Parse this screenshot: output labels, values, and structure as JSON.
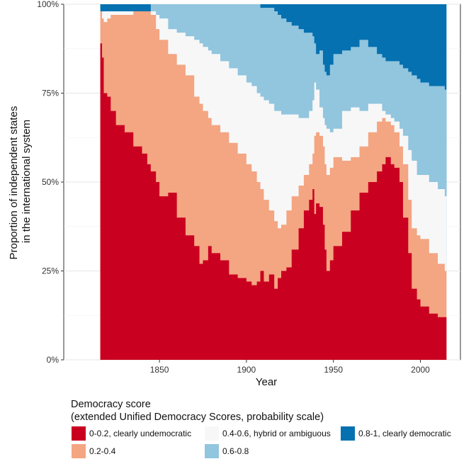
{
  "chart_data": {
    "type": "area",
    "xlabel": "Year",
    "ylabel_lines": [
      "Proportion of independent states",
      "in the international system"
    ],
    "xlim": [
      1795,
      2023
    ],
    "ylim": [
      0,
      1
    ],
    "x_ticks": [
      1850,
      1900,
      1950,
      2000
    ],
    "y_ticks": [
      0,
      0.25,
      0.5,
      0.75,
      1
    ],
    "y_tick_labels": [
      "0%",
      "25%",
      "50%",
      "75%",
      "100%"
    ],
    "x_tick_labels": [
      "1850",
      "1900",
      "1950",
      "2000"
    ],
    "grid": true,
    "legend_position": "bottom",
    "legend_title_lines": [
      "Democracy score",
      "(extended Unified Democracy Scores, probability scale)"
    ],
    "series": [
      {
        "name": "0-2, clearly undemocratic",
        "display_name": "0-0.2, clearly undemocratic",
        "color": "#ca0020"
      },
      {
        "name": "0.2-0.4",
        "color": "#f4a582"
      },
      {
        "name": "0.4-0.6, hybrid or ambiguous",
        "color": "#f7f7f7"
      },
      {
        "name": "0.6-0.8",
        "color": "#92c5de"
      },
      {
        "name": "0.8-1, clearly democratic",
        "color": "#0571b0"
      }
    ],
    "cumulative_upper_bounds": {
      "x": [
        1816,
        1817,
        1818,
        1820,
        1822,
        1825,
        1830,
        1835,
        1840,
        1843,
        1845,
        1848,
        1850,
        1855,
        1860,
        1865,
        1870,
        1873,
        1875,
        1878,
        1880,
        1885,
        1890,
        1895,
        1900,
        1903,
        1906,
        1908,
        1910,
        1913,
        1916,
        1918,
        1920,
        1923,
        1926,
        1930,
        1933,
        1936,
        1938,
        1939,
        1940,
        1942,
        1944,
        1945,
        1946,
        1948,
        1950,
        1955,
        1960,
        1965,
        1970,
        1975,
        1978,
        1980,
        1983,
        1985,
        1988,
        1990,
        1993,
        1995,
        1998,
        2000,
        2005,
        2010,
        2014
      ],
      "undemocratic": [
        0.89,
        0.85,
        0.75,
        0.74,
        0.7,
        0.66,
        0.64,
        0.6,
        0.58,
        0.55,
        0.53,
        0.5,
        0.46,
        0.47,
        0.4,
        0.35,
        0.32,
        0.27,
        0.28,
        0.32,
        0.3,
        0.28,
        0.24,
        0.23,
        0.22,
        0.21,
        0.22,
        0.25,
        0.22,
        0.24,
        0.2,
        0.23,
        0.25,
        0.26,
        0.31,
        0.37,
        0.42,
        0.45,
        0.48,
        0.41,
        0.44,
        0.43,
        0.38,
        0.31,
        0.25,
        0.28,
        0.32,
        0.36,
        0.42,
        0.47,
        0.5,
        0.53,
        0.55,
        0.57,
        0.55,
        0.54,
        0.5,
        0.4,
        0.3,
        0.2,
        0.17,
        0.15,
        0.13,
        0.12,
        0.12
      ],
      "cum_0_4": [
        0.98,
        0.96,
        0.95,
        0.96,
        0.97,
        0.97,
        0.97,
        0.98,
        0.98,
        0.98,
        0.97,
        0.93,
        0.9,
        0.86,
        0.83,
        0.8,
        0.74,
        0.72,
        0.7,
        0.68,
        0.66,
        0.64,
        0.61,
        0.58,
        0.55,
        0.53,
        0.5,
        0.48,
        0.45,
        0.42,
        0.39,
        0.37,
        0.38,
        0.42,
        0.46,
        0.49,
        0.52,
        0.55,
        0.58,
        0.63,
        0.64,
        0.63,
        0.6,
        0.55,
        0.52,
        0.54,
        0.57,
        0.56,
        0.57,
        0.6,
        0.64,
        0.67,
        0.68,
        0.67,
        0.66,
        0.64,
        0.6,
        0.55,
        0.45,
        0.37,
        0.35,
        0.34,
        0.3,
        0.27,
        0.25
      ],
      "cum_0_6": [
        0.98,
        0.98,
        0.98,
        0.98,
        0.98,
        0.98,
        0.98,
        0.98,
        0.98,
        0.98,
        0.98,
        0.97,
        0.96,
        0.93,
        0.92,
        0.91,
        0.9,
        0.89,
        0.88,
        0.87,
        0.86,
        0.84,
        0.82,
        0.8,
        0.78,
        0.77,
        0.75,
        0.74,
        0.73,
        0.72,
        0.7,
        0.7,
        0.69,
        0.69,
        0.69,
        0.68,
        0.68,
        0.7,
        0.73,
        0.78,
        0.76,
        0.71,
        0.68,
        0.66,
        0.65,
        0.64,
        0.65,
        0.7,
        0.71,
        0.7,
        0.72,
        0.72,
        0.7,
        0.69,
        0.68,
        0.67,
        0.65,
        0.63,
        0.59,
        0.56,
        0.52,
        0.52,
        0.5,
        0.48,
        0.46
      ],
      "cum_0_8": [
        0.98,
        0.98,
        0.98,
        0.98,
        0.98,
        0.98,
        0.98,
        0.98,
        0.98,
        0.98,
        1.0,
        1.0,
        1.0,
        1.0,
        1.0,
        1.0,
        1.0,
        1.0,
        1.0,
        1.0,
        1.0,
        1.0,
        1.0,
        1.0,
        1.0,
        1.0,
        1.0,
        0.99,
        0.99,
        0.99,
        0.98,
        0.97,
        0.96,
        0.95,
        0.94,
        0.93,
        0.92,
        0.92,
        0.91,
        0.89,
        0.86,
        0.87,
        0.83,
        0.81,
        0.8,
        0.83,
        0.86,
        0.87,
        0.88,
        0.9,
        0.88,
        0.86,
        0.85,
        0.84,
        0.84,
        0.84,
        0.83,
        0.82,
        0.81,
        0.8,
        0.79,
        0.78,
        0.77,
        0.77,
        0.76
      ]
    }
  }
}
